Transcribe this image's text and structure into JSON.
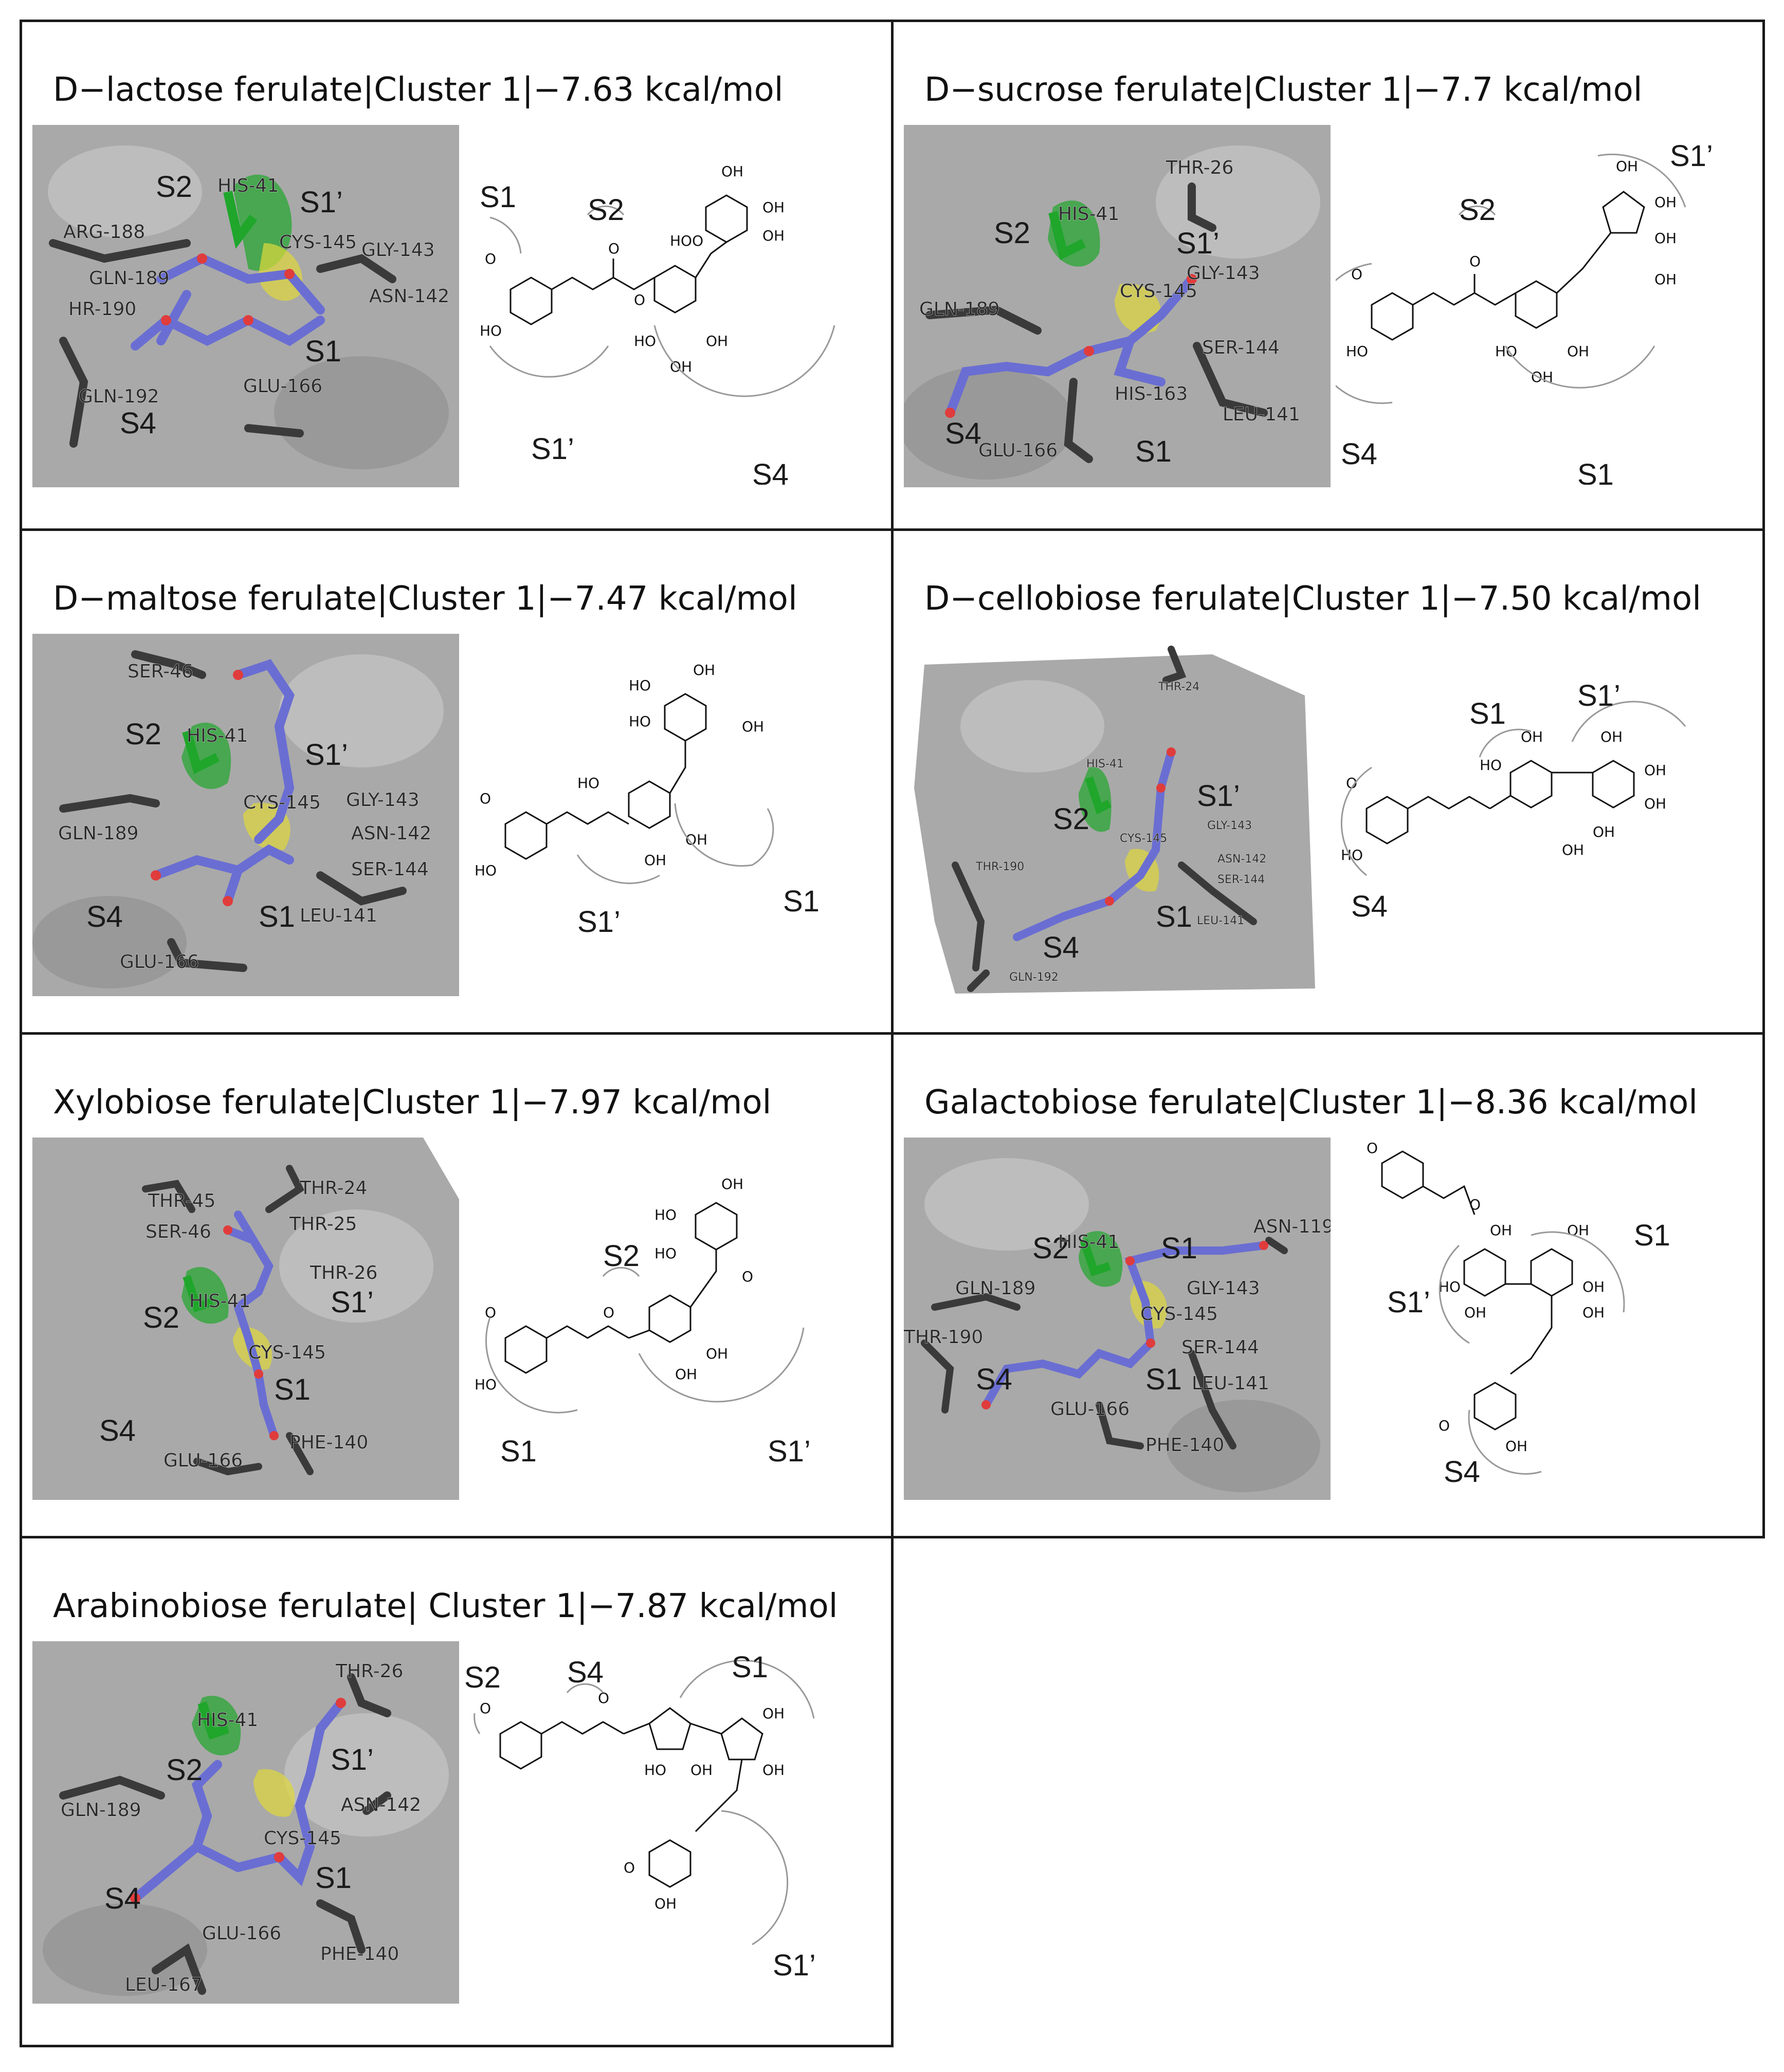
{
  "panels": [
    {
      "title": "D−lactose ferulate|Cluster 1|−7.63 kcal/mol",
      "dock_labels": [
        "S2",
        "S1’",
        "S1",
        "S4"
      ],
      "residues": [
        "HIS-41",
        "ARG-188",
        "GLN-189",
        "CYS-145",
        "GLY-143",
        "ASN-142",
        "HR-190",
        "GLN-192",
        "GLU-166"
      ],
      "chem_labels": [
        "S1",
        "S2",
        "S1’",
        "S4"
      ]
    },
    {
      "title": "D−sucrose ferulate|Cluster 1|−7.7 kcal/mol",
      "dock_labels": [
        "S2",
        "S1’",
        "S4",
        "S1"
      ],
      "residues": [
        "THR-26",
        "HIS-41",
        "GLY-143",
        "GLN-189",
        "CYS-145",
        "SER-144",
        "HIS-163",
        "GLU-166",
        "LEU-141"
      ],
      "chem_labels": [
        "S1’",
        "S2",
        "S4",
        "S1"
      ]
    },
    {
      "title": "D−maltose ferulate|Cluster 1|−7.47 kcal/mol",
      "dock_labels": [
        "S2",
        "S1’",
        "S4",
        "S1"
      ],
      "residues": [
        "SER-46",
        "HIS-41",
        "GLY-143",
        "CYS-145",
        "GLN-189",
        "ASN-142",
        "SER-144",
        "LEU-141",
        "GLU-166"
      ],
      "chem_labels": [
        "S1’",
        "S1"
      ]
    },
    {
      "title": "D−cellobiose ferulate|Cluster 1|−7.50 kcal/mol",
      "dock_labels": [
        "S1’",
        "S2",
        "S1",
        "S4"
      ],
      "residues": [
        "THR-24",
        "HIS-41",
        "GLY-143",
        "CYS-145",
        "ASN-142",
        "THR-190",
        "SER-144",
        "LEU-141",
        "GLN-192"
      ],
      "chem_labels": [
        "S1’",
        "S1",
        "S4"
      ]
    },
    {
      "title": "Xylobiose ferulate|Cluster 1|−7.97 kcal/mol",
      "dock_labels": [
        "S1’",
        "S2",
        "S1",
        "S4"
      ],
      "residues": [
        "THR-24",
        "THR-45",
        "THR-25",
        "SER-46",
        "THR-26",
        "HIS-41",
        "CYS-145",
        "PHE-140",
        "GLU-166"
      ],
      "chem_labels": [
        "S2",
        "S1",
        "S1’"
      ]
    },
    {
      "title": "Galactobiose ferulate|Cluster 1|−8.36 kcal/mol",
      "dock_labels": [
        "S2",
        "S1",
        "S4",
        "S1"
      ],
      "residues": [
        "HIS-41",
        "ASN-119",
        "GLN-189",
        "GLY-143",
        "THR-190",
        "CYS-145",
        "SER-144",
        "LEU-141",
        "GLU-166",
        "PHE-140"
      ],
      "chem_labels": [
        "S1",
        "S1’",
        "S4"
      ]
    },
    {
      "title": "Arabinobiose ferulate| Cluster 1|−7.87 kcal/mol",
      "dock_labels": [
        "S2",
        "S1’",
        "S4",
        "S1"
      ],
      "residues": [
        "THR-26",
        "HIS-41",
        "ASN-142",
        "GLN-189",
        "CYS-145",
        "GLU-166",
        "PHE-140",
        "LEU-167"
      ],
      "chem_labels": [
        "S2",
        "S4",
        "S1",
        "S1’"
      ]
    }
  ],
  "atom_labels": {
    "hydroxyl": "OH",
    "oxygen": "O",
    "hydroperoxy": "HOO",
    "hydroxy_left": "HO"
  },
  "colors": {
    "surface": "#a9a9a9",
    "ligand": "#6a6ed2",
    "his41": "#1fa62b",
    "cys145": "#e0d83a",
    "residue": "#3a3a3a",
    "hbond": "#d8d23a",
    "oxygen": "#e03c3c"
  }
}
